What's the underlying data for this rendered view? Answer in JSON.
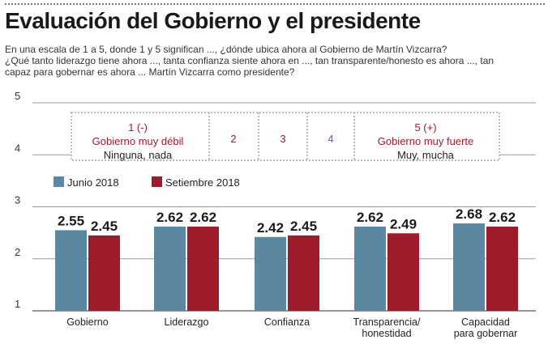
{
  "header": {
    "title": "Evaluación del Gobierno y el presidente",
    "subtitle_lines": [
      "En una escala de 1 a 5, donde 1 y 5 significan ..., ¿dónde ubica ahora al Gobierno de Martín Vizcarra?",
      "¿Qué tanto liderazgo tiene ahora ..., tanta confianza siente ahora en ..., tan transparente/honesto es ahora ..., tan",
      "capaz para gobernar es ahora ... Martín Vizcarra como presidente?"
    ]
  },
  "scale_box": {
    "items": [
      {
        "lines": [
          "1 (-)",
          "Gobierno muy débil",
          "Ninguna, nada"
        ]
      },
      {
        "lines": [
          "2"
        ]
      },
      {
        "lines": [
          "3"
        ]
      },
      {
        "lines": [
          "4"
        ]
      },
      {
        "lines": [
          "5 (+)",
          "Gobierno muy fuerte",
          "Muy, mucha"
        ]
      }
    ]
  },
  "colors": {
    "junio": "#5b87a0",
    "setiembre": "#9e1b2b",
    "scale_red": "#9e1b2b",
    "scale_purple": "#8a4fa8",
    "grid": "#999999"
  },
  "chart_data": {
    "type": "bar",
    "ylim": [
      1,
      5
    ],
    "yticks": [
      "1",
      "2",
      "3",
      "4",
      "5"
    ],
    "categories": [
      [
        "Gobierno"
      ],
      [
        "Liderazgo"
      ],
      [
        "Confianza"
      ],
      [
        "Transparencia/",
        "honestidad"
      ],
      [
        "Capacidad",
        "para gobernar"
      ]
    ],
    "series": [
      {
        "name": "Junio 2018",
        "values": [
          2.55,
          2.62,
          2.42,
          2.62,
          2.68
        ],
        "labels": [
          "2.55",
          "2.62",
          "2.42",
          "2.62",
          "2.68"
        ]
      },
      {
        "name": "Setiembre 2018",
        "values": [
          2.45,
          2.62,
          2.45,
          2.49,
          2.62
        ],
        "labels": [
          "2.45",
          "2.62",
          "2.45",
          "2.49",
          "2.62"
        ]
      }
    ]
  }
}
